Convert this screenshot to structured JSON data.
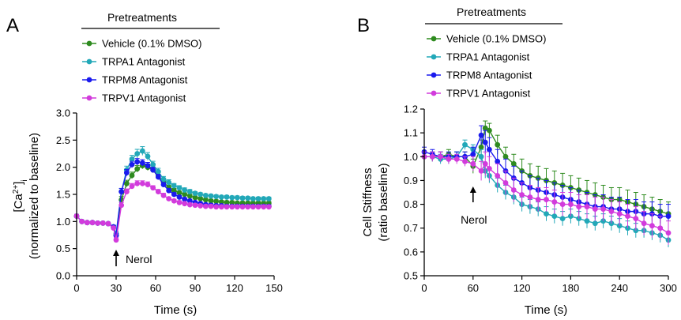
{
  "colors": {
    "vehicle": "#2e8b1f",
    "trpa1": "#22a8b8",
    "trpm8": "#1a1aee",
    "trpv1": "#d23bdc",
    "axis": "#000000"
  },
  "chart_data": [
    {
      "type": "line",
      "panel_letter": "A",
      "legend_title": "Pretreatments",
      "xlabel": "Time (s)",
      "ylabel_main": "[Ca",
      "ylabel_sup": "2+",
      "ylabel_close": "]",
      "ylabel_sub": "i",
      "ylabel_line2": "(normalized to baseline)",
      "xlim": [
        0,
        150
      ],
      "ylim": [
        0.0,
        3.0
      ],
      "xticks": [
        0,
        30,
        60,
        90,
        120,
        150
      ],
      "yticks": [
        "0.0",
        "0.5",
        "1.0",
        "1.5",
        "2.0",
        "2.5",
        "3.0"
      ],
      "grid": false,
      "legend_position": "top",
      "annotation": {
        "text": "Nerol",
        "x": 30
      },
      "x": [
        0,
        4,
        8,
        12,
        16,
        20,
        24,
        28,
        30,
        34,
        38,
        42,
        46,
        50,
        54,
        58,
        62,
        66,
        70,
        74,
        78,
        82,
        86,
        90,
        94,
        98,
        102,
        106,
        110,
        114,
        118,
        122,
        126,
        130,
        134,
        138,
        142,
        146
      ],
      "series": [
        {
          "name": "Vehicle (0.1% DMSO)",
          "color": "#2e8b1f",
          "values": [
            1.1,
            1.0,
            0.98,
            0.98,
            0.97,
            0.97,
            0.96,
            0.9,
            0.75,
            1.4,
            1.7,
            1.85,
            1.97,
            2.03,
            2.0,
            1.95,
            1.85,
            1.72,
            1.63,
            1.57,
            1.53,
            1.5,
            1.47,
            1.44,
            1.42,
            1.4,
            1.38,
            1.37,
            1.36,
            1.35,
            1.35,
            1.34,
            1.34,
            1.34,
            1.34,
            1.34,
            1.34,
            1.34
          ],
          "errors": [
            0.03,
            0.02,
            0.02,
            0.02,
            0.02,
            0.02,
            0.02,
            0.03,
            0.04,
            0.06,
            0.06,
            0.06,
            0.06,
            0.06,
            0.06,
            0.05,
            0.05,
            0.04,
            0.04,
            0.04,
            0.03,
            0.03,
            0.03,
            0.03,
            0.03,
            0.03,
            0.03,
            0.03,
            0.03,
            0.03,
            0.03,
            0.03,
            0.03,
            0.03,
            0.03,
            0.03,
            0.03,
            0.03
          ]
        },
        {
          "name": "TRPA1 Antagonist",
          "color": "#22a8b8",
          "values": [
            1.1,
            1.0,
            0.98,
            0.98,
            0.97,
            0.97,
            0.96,
            0.9,
            0.78,
            1.55,
            1.95,
            2.15,
            2.25,
            2.3,
            2.2,
            2.05,
            1.92,
            1.78,
            1.72,
            1.66,
            1.62,
            1.58,
            1.55,
            1.52,
            1.5,
            1.48,
            1.47,
            1.46,
            1.45,
            1.45,
            1.44,
            1.44,
            1.43,
            1.43,
            1.42,
            1.42,
            1.42,
            1.42
          ],
          "errors": [
            0.03,
            0.02,
            0.02,
            0.02,
            0.02,
            0.02,
            0.02,
            0.03,
            0.04,
            0.06,
            0.07,
            0.07,
            0.08,
            0.08,
            0.07,
            0.06,
            0.06,
            0.05,
            0.05,
            0.04,
            0.04,
            0.04,
            0.04,
            0.03,
            0.03,
            0.03,
            0.03,
            0.03,
            0.03,
            0.03,
            0.03,
            0.03,
            0.03,
            0.03,
            0.03,
            0.03,
            0.03,
            0.03
          ]
        },
        {
          "name": "TRPM8 Antagonist",
          "color": "#1a1aee",
          "values": [
            1.1,
            1.0,
            0.98,
            0.98,
            0.97,
            0.97,
            0.96,
            0.9,
            0.74,
            1.55,
            1.9,
            2.05,
            2.1,
            2.08,
            2.03,
            1.95,
            1.82,
            1.68,
            1.57,
            1.5,
            1.45,
            1.41,
            1.38,
            1.35,
            1.33,
            1.31,
            1.3,
            1.29,
            1.29,
            1.28,
            1.28,
            1.28,
            1.28,
            1.28,
            1.28,
            1.28,
            1.28,
            1.28
          ],
          "errors": [
            0.03,
            0.02,
            0.02,
            0.02,
            0.02,
            0.02,
            0.02,
            0.03,
            0.04,
            0.06,
            0.06,
            0.06,
            0.06,
            0.06,
            0.06,
            0.05,
            0.05,
            0.04,
            0.04,
            0.03,
            0.03,
            0.03,
            0.03,
            0.03,
            0.03,
            0.03,
            0.03,
            0.03,
            0.03,
            0.03,
            0.03,
            0.03,
            0.03,
            0.03,
            0.03,
            0.03,
            0.03,
            0.03
          ]
        },
        {
          "name": "TRPV1 Antagonist",
          "color": "#d23bdc",
          "values": [
            1.1,
            1.0,
            0.98,
            0.98,
            0.97,
            0.97,
            0.96,
            0.88,
            0.66,
            1.3,
            1.55,
            1.65,
            1.7,
            1.7,
            1.68,
            1.62,
            1.55,
            1.48,
            1.42,
            1.38,
            1.35,
            1.33,
            1.31,
            1.3,
            1.29,
            1.28,
            1.28,
            1.27,
            1.27,
            1.27,
            1.27,
            1.27,
            1.27,
            1.27,
            1.27,
            1.27,
            1.27,
            1.27
          ],
          "errors": [
            0.03,
            0.02,
            0.02,
            0.02,
            0.02,
            0.02,
            0.02,
            0.03,
            0.04,
            0.05,
            0.05,
            0.05,
            0.05,
            0.05,
            0.05,
            0.04,
            0.04,
            0.04,
            0.03,
            0.03,
            0.03,
            0.03,
            0.03,
            0.03,
            0.03,
            0.03,
            0.03,
            0.03,
            0.03,
            0.03,
            0.03,
            0.03,
            0.03,
            0.03,
            0.03,
            0.03,
            0.03,
            0.03
          ]
        }
      ]
    },
    {
      "type": "line",
      "panel_letter": "B",
      "legend_title": "Pretreatments",
      "xlabel": "Time (s)",
      "ylabel_line1": "Cell Stiffness",
      "ylabel_line2": "(ratio baseline)",
      "xlim": [
        0,
        300
      ],
      "ylim": [
        0.5,
        1.2
      ],
      "xticks": [
        0,
        60,
        120,
        180,
        240,
        300
      ],
      "yticks": [
        "0.5",
        "0.6",
        "0.7",
        "0.8",
        "0.9",
        "1.0",
        "1.1",
        "1.2"
      ],
      "grid": false,
      "legend_position": "top",
      "annotation": {
        "text": "Nerol",
        "x": 60
      },
      "x": [
        0,
        10,
        20,
        30,
        40,
        50,
        60,
        70,
        75,
        80,
        90,
        100,
        110,
        120,
        130,
        140,
        150,
        160,
        170,
        180,
        190,
        200,
        210,
        220,
        230,
        240,
        250,
        260,
        270,
        280,
        290,
        300
      ],
      "series": [
        {
          "name": "Vehicle (0.1% DMSO)",
          "color": "#2e8b1f",
          "values": [
            1.0,
            1.0,
            1.0,
            1.01,
            1.0,
            1.0,
            0.96,
            1.04,
            1.12,
            1.11,
            1.05,
            1.0,
            0.97,
            0.94,
            0.92,
            0.91,
            0.9,
            0.89,
            0.88,
            0.87,
            0.86,
            0.85,
            0.84,
            0.83,
            0.82,
            0.82,
            0.81,
            0.8,
            0.79,
            0.78,
            0.77,
            0.76
          ],
          "errors": [
            0.02,
            0.02,
            0.02,
            0.02,
            0.02,
            0.02,
            0.03,
            0.03,
            0.03,
            0.03,
            0.04,
            0.04,
            0.04,
            0.05,
            0.05,
            0.05,
            0.05,
            0.05,
            0.05,
            0.05,
            0.05,
            0.05,
            0.05,
            0.05,
            0.05,
            0.05,
            0.05,
            0.05,
            0.05,
            0.05,
            0.05,
            0.05
          ]
        },
        {
          "name": "TRPA1 Antagonist",
          "color": "#22a8b8",
          "values": [
            1.0,
            1.0,
            0.99,
            0.99,
            1.0,
            1.05,
            1.03,
            1.0,
            0.94,
            0.92,
            0.88,
            0.85,
            0.83,
            0.8,
            0.79,
            0.78,
            0.76,
            0.75,
            0.74,
            0.75,
            0.74,
            0.73,
            0.72,
            0.73,
            0.72,
            0.71,
            0.7,
            0.69,
            0.69,
            0.68,
            0.67,
            0.65
          ],
          "errors": [
            0.02,
            0.02,
            0.02,
            0.02,
            0.02,
            0.02,
            0.02,
            0.03,
            0.03,
            0.03,
            0.03,
            0.03,
            0.03,
            0.03,
            0.03,
            0.03,
            0.03,
            0.03,
            0.03,
            0.03,
            0.03,
            0.03,
            0.03,
            0.03,
            0.03,
            0.03,
            0.03,
            0.03,
            0.03,
            0.03,
            0.03,
            0.03
          ]
        },
        {
          "name": "TRPM8 Antagonist",
          "color": "#1a1aee",
          "values": [
            1.02,
            1.01,
            1.0,
            1.0,
            1.0,
            1.0,
            1.01,
            1.09,
            1.06,
            1.03,
            0.98,
            0.94,
            0.91,
            0.89,
            0.87,
            0.86,
            0.85,
            0.84,
            0.83,
            0.82,
            0.81,
            0.8,
            0.79,
            0.79,
            0.78,
            0.78,
            0.77,
            0.77,
            0.76,
            0.76,
            0.75,
            0.75
          ],
          "errors": [
            0.02,
            0.02,
            0.02,
            0.02,
            0.02,
            0.02,
            0.03,
            0.04,
            0.05,
            0.05,
            0.05,
            0.05,
            0.05,
            0.05,
            0.05,
            0.05,
            0.05,
            0.05,
            0.05,
            0.05,
            0.05,
            0.05,
            0.05,
            0.05,
            0.05,
            0.05,
            0.05,
            0.05,
            0.05,
            0.05,
            0.05,
            0.05
          ]
        },
        {
          "name": "TRPV1 Antagonist",
          "color": "#d23bdc",
          "values": [
            1.0,
            1.0,
            1.0,
            0.99,
            0.99,
            0.98,
            0.97,
            0.94,
            0.97,
            0.95,
            0.92,
            0.89,
            0.86,
            0.84,
            0.83,
            0.82,
            0.82,
            0.81,
            0.8,
            0.8,
            0.79,
            0.79,
            0.78,
            0.78,
            0.77,
            0.76,
            0.75,
            0.74,
            0.72,
            0.71,
            0.7,
            0.68
          ],
          "errors": [
            0.02,
            0.02,
            0.02,
            0.02,
            0.02,
            0.02,
            0.03,
            0.04,
            0.05,
            0.05,
            0.05,
            0.05,
            0.05,
            0.05,
            0.05,
            0.05,
            0.05,
            0.05,
            0.05,
            0.05,
            0.05,
            0.05,
            0.05,
            0.05,
            0.05,
            0.05,
            0.05,
            0.05,
            0.05,
            0.05,
            0.05,
            0.05
          ]
        }
      ]
    }
  ]
}
